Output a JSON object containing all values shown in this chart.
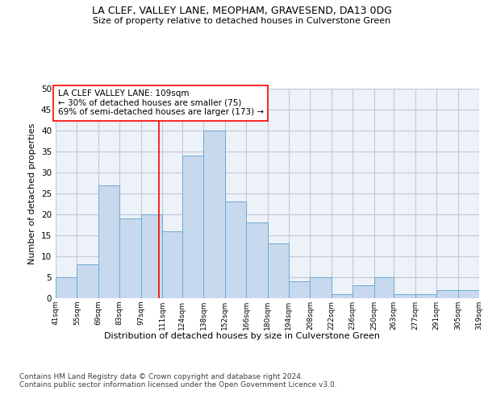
{
  "title": "LA CLEF, VALLEY LANE, MEOPHAM, GRAVESEND, DA13 0DG",
  "subtitle": "Size of property relative to detached houses in Culverstone Green",
  "xlabel_bottom": "Distribution of detached houses by size in Culverstone Green",
  "ylabel": "Number of detached properties",
  "bar_color": "#c8d9ed",
  "bar_edge_color": "#6aaad4",
  "grid_color": "#c0c8d8",
  "bg_color": "#edf1f8",
  "annotation_line1": "LA CLEF VALLEY LANE: 109sqm",
  "annotation_line2": "← 30% of detached houses are smaller (75)",
  "annotation_line3": "69% of semi-detached houses are larger (173) →",
  "annotation_box_color": "white",
  "annotation_box_edge": "red",
  "vline_x": 109,
  "vline_color": "red",
  "bin_edges": [
    41,
    55,
    69,
    83,
    97,
    111,
    124,
    138,
    152,
    166,
    180,
    194,
    208,
    222,
    236,
    250,
    263,
    277,
    291,
    305,
    319
  ],
  "bar_heights": [
    5,
    8,
    27,
    19,
    20,
    16,
    34,
    40,
    23,
    18,
    13,
    4,
    5,
    1,
    3,
    5,
    1,
    1,
    2,
    2
  ],
  "ylim": [
    0,
    50
  ],
  "yticks": [
    0,
    5,
    10,
    15,
    20,
    25,
    30,
    35,
    40,
    45,
    50
  ],
  "footnote": "Contains HM Land Registry data © Crown copyright and database right 2024.\nContains public sector information licensed under the Open Government Licence v3.0.",
  "footnote_fontsize": 6.5,
  "title_fontsize": 9,
  "subtitle_fontsize": 8,
  "ylabel_fontsize": 8,
  "xlabel_fontsize": 8,
  "tick_fontsize": 6.5,
  "ytick_fontsize": 7.5,
  "annot_fontsize": 7.5
}
